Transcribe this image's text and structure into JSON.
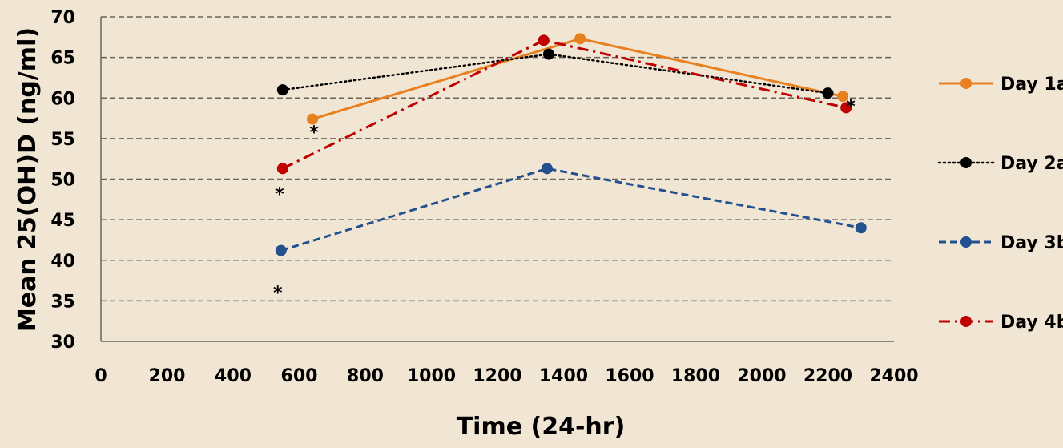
{
  "chart_data": {
    "type": "line",
    "xlabel": "Time (24-hr)",
    "ylabel": "Mean 25(OH)D (ng/ml)",
    "xlim": [
      0,
      2400
    ],
    "ylim": [
      30,
      70
    ],
    "xticks": [
      0,
      200,
      400,
      600,
      800,
      1000,
      1200,
      1400,
      1600,
      1800,
      2000,
      2200,
      2400
    ],
    "yticks": [
      30,
      35,
      40,
      45,
      50,
      55,
      60,
      65,
      70
    ],
    "grid": "horizontal dashed",
    "legend_position": "right",
    "series": [
      {
        "name": "Day 1a",
        "color": "#e8801f",
        "dash": "solid",
        "x": [
          640,
          1450,
          2245
        ],
        "y": [
          57.4,
          67.3,
          60.2
        ],
        "star_after": [
          0,
          2
        ]
      },
      {
        "name": "Day 2a",
        "color": "#000000",
        "dash": "dotted",
        "x": [
          550,
          1355,
          2200
        ],
        "y": [
          61.0,
          65.4,
          60.6
        ],
        "star_after": []
      },
      {
        "name": "Day 3b",
        "color": "#23508e",
        "dash": "dashed",
        "x": [
          545,
          1350,
          2300
        ],
        "y": [
          41.2,
          51.3,
          44.0
        ],
        "star_after": [
          0
        ]
      },
      {
        "name": "Day 4b",
        "color": "#c00000",
        "dash": "dashdot",
        "x": [
          550,
          1340,
          2255
        ],
        "y": [
          51.3,
          67.1,
          58.8
        ],
        "star_after": [
          0
        ]
      }
    ],
    "annotations": [
      "*",
      "*",
      "*",
      "*",
      "*"
    ]
  }
}
